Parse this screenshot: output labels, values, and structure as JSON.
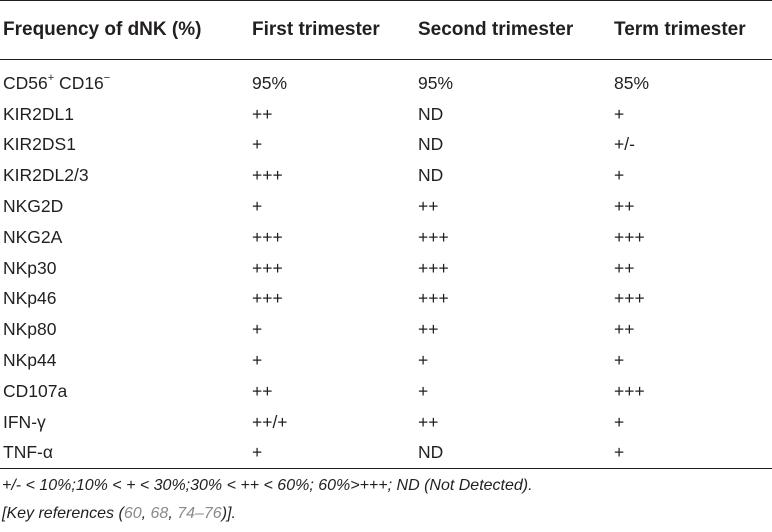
{
  "table": {
    "headers": [
      "Frequency of dNK (%)",
      "First trimester",
      "Second trimester",
      "Term trimester"
    ],
    "rows": [
      {
        "marker_base": "CD56",
        "marker_sup1": "+",
        "marker_mid": " CD16",
        "marker_sup2": "−",
        "first": "95%",
        "second": "95%",
        "term": "85%"
      },
      {
        "marker": "KIR2DL1",
        "first": "++",
        "second": "ND",
        "term": "+"
      },
      {
        "marker": "KIR2DS1",
        "first": "+",
        "second": "ND",
        "term": "+/-"
      },
      {
        "marker": "KIR2DL2/3",
        "first": "+++",
        "second": "ND",
        "term": "+"
      },
      {
        "marker": "NKG2D",
        "first": "+",
        "second": "++",
        "term": "++"
      },
      {
        "marker": "NKG2A",
        "first": "+++",
        "second": "+++",
        "term": "+++"
      },
      {
        "marker": "NKp30",
        "first": "+++",
        "second": "+++",
        "term": "++"
      },
      {
        "marker": "NKp46",
        "first": "+++",
        "second": "+++",
        "term": "+++"
      },
      {
        "marker": "NKp80",
        "first": "+",
        "second": "++",
        "term": "++"
      },
      {
        "marker": "NKp44",
        "first": "+",
        "second": "+",
        "term": "+"
      },
      {
        "marker": "CD107a",
        "first": "++",
        "second": "+",
        "term": "+++"
      },
      {
        "marker": "IFN-γ",
        "first": "++/+",
        "second": "++",
        "term": "+"
      },
      {
        "marker": "TNF-α",
        "first": "+",
        "second": "ND",
        "term": "+"
      }
    ]
  },
  "footnote": {
    "legend": "+/- < 10%;10% < + < 30%;30% < ++ < 60%; 60%>+++; ND (Not Detected).",
    "refs_prefix": "[Key references (",
    "ref1": "60",
    "sep1": ", ",
    "ref2": "68",
    "sep2": ", ",
    "ref3": "74–76",
    "refs_suffix": ")]."
  }
}
